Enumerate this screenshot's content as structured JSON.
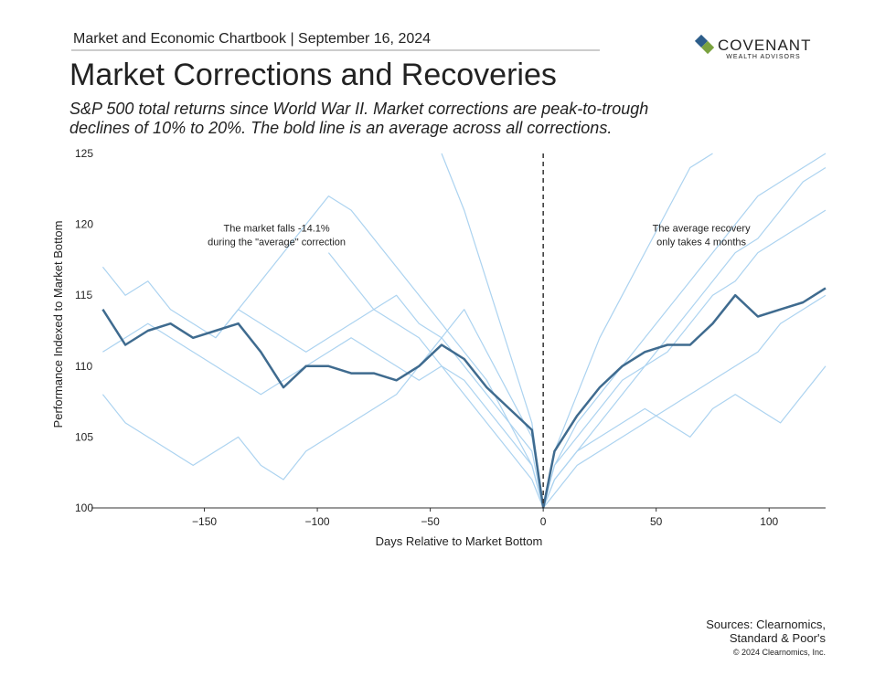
{
  "header": {
    "chartbook": "Market and Economic Chartbook | September 16, 2024",
    "logo_name": "COVENANT",
    "logo_tagline": "WEALTH ADVISORS"
  },
  "chart_data": {
    "type": "line",
    "title": "Market Corrections and Recoveries",
    "subtitle": [
      "S&P 500 total returns since World War II. Market corrections are peak-to-trough",
      "declines of 10% to 20%. The bold line is an average across all corrections."
    ],
    "xlabel": "Days Relative to Market Bottom",
    "ylabel": "Performance Indexed to Market Bottom",
    "annotations": [
      {
        "lines": [
          "The market falls -14.1%",
          "during the \"average\" correction"
        ],
        "x": -118,
        "y": 119.5
      },
      {
        "lines": [
          "The average recovery",
          "only takes 4 months"
        ],
        "x": 70,
        "y": 119.5
      }
    ],
    "xlim": [
      -200,
      125
    ],
    "ylim": [
      100,
      125
    ],
    "xticks": [
      {
        "value": -150,
        "label": "−150"
      },
      {
        "value": -100,
        "label": "−100"
      },
      {
        "value": -50,
        "label": "−50"
      },
      0,
      50,
      100
    ],
    "yticks": [
      100,
      105,
      110,
      115,
      120,
      125
    ],
    "marker_x": 0,
    "x": [
      -195,
      -185,
      -175,
      -165,
      -155,
      -145,
      -135,
      -125,
      -115,
      -105,
      -95,
      -85,
      -75,
      -65,
      -55,
      -45,
      -35,
      -25,
      -15,
      -5,
      0,
      5,
      15,
      25,
      35,
      45,
      55,
      65,
      75,
      85,
      95,
      105,
      115,
      125
    ],
    "series": [
      {
        "color": "#acd3f0",
        "values": [
          117,
          115,
          116,
          114,
          113,
          112,
          114,
          113,
          112,
          111,
          112,
          113,
          114,
          115,
          113,
          112,
          110,
          108,
          106,
          104,
          100,
          103,
          106,
          108,
          110,
          112,
          114,
          116,
          118,
          120,
          122,
          123,
          124,
          125
        ]
      },
      {
        "color": "#acd3f0",
        "values": [
          108,
          106,
          105,
          104,
          103,
          104,
          105,
          103,
          102,
          104,
          105,
          106,
          107,
          108,
          110,
          112,
          114,
          111,
          108,
          105,
          100,
          102,
          104,
          105,
          106,
          107,
          106,
          105,
          107,
          108,
          107,
          106,
          108,
          110
        ]
      },
      {
        "color": "#acd3f0",
        "values": [
          null,
          null,
          null,
          null,
          null,
          null,
          null,
          null,
          null,
          null,
          null,
          null,
          null,
          null,
          null,
          125,
          121,
          116,
          111,
          106,
          100,
          104,
          108,
          112,
          115,
          118,
          121,
          124,
          125,
          null,
          null,
          null,
          null,
          null
        ]
      },
      {
        "color": "#acd3f0",
        "values": [
          null,
          null,
          null,
          null,
          null,
          null,
          null,
          null,
          null,
          null,
          118,
          116,
          114,
          113,
          112,
          110,
          108,
          106,
          104,
          102,
          100,
          103,
          105,
          107,
          109,
          110,
          111,
          113,
          115,
          116,
          118,
          119,
          120,
          121
        ]
      },
      {
        "color": "#acd3f0",
        "values": [
          111,
          112,
          113,
          112,
          111,
          110,
          109,
          108,
          109,
          110,
          111,
          112,
          111,
          110,
          109,
          110,
          109,
          107,
          105,
          103,
          100,
          101,
          103,
          104,
          105,
          106,
          107,
          108,
          109,
          110,
          111,
          113,
          114,
          115
        ]
      },
      {
        "color": "#acd3f0",
        "values": [
          null,
          null,
          null,
          null,
          null,
          112,
          114,
          116,
          118,
          120,
          122,
          121,
          119,
          117,
          115,
          113,
          111,
          109,
          106,
          103,
          100,
          102,
          104,
          106,
          108,
          110,
          112,
          114,
          116,
          118,
          119,
          121,
          123,
          124
        ]
      },
      {
        "color": "#3f6b8f",
        "bold": true,
        "values": [
          114,
          111.5,
          112.5,
          113,
          112,
          112.5,
          113,
          111,
          108.5,
          110,
          110,
          109.5,
          109.5,
          109,
          110,
          111.5,
          110.5,
          108.5,
          107,
          105.5,
          100,
          104,
          106.5,
          108.5,
          110,
          111,
          111.5,
          111.5,
          113,
          115,
          113.5,
          114,
          114.5,
          115.5
        ]
      }
    ]
  },
  "footer": {
    "sources": [
      "Sources: Clearnomics,",
      "Standard & Poor's"
    ],
    "copyright": "© 2024 Clearnomics, Inc."
  }
}
